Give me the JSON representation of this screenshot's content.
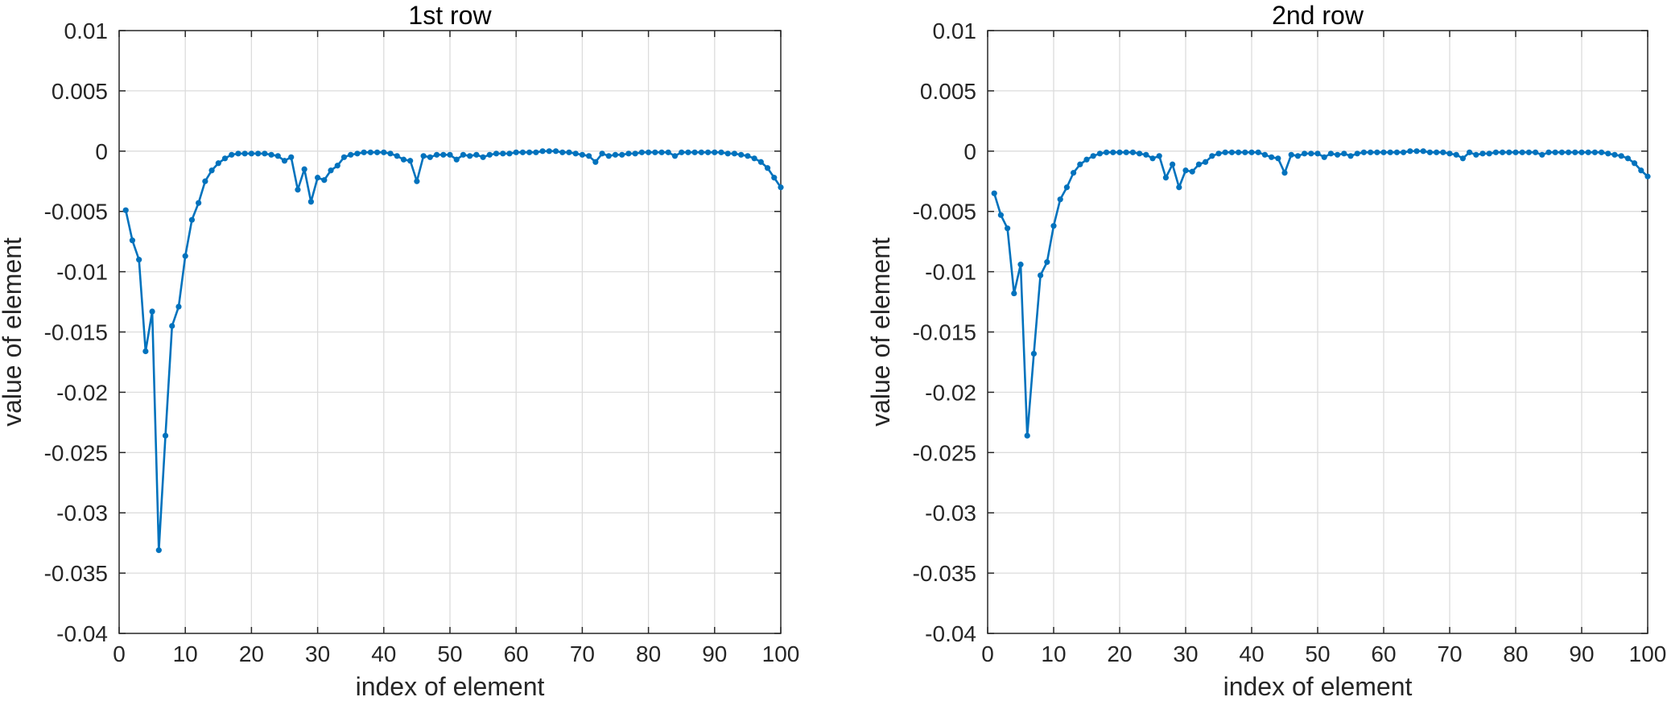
{
  "colors": {
    "line": "#0072BD",
    "grid": "#dcdcdc",
    "axis": "#262626"
  },
  "chart_data": [
    {
      "type": "line",
      "title": "1st row",
      "xlabel": "index of element",
      "ylabel": "value of element",
      "xlim": [
        0,
        100
      ],
      "ylim": [
        -0.04,
        0.01
      ],
      "xticks": [
        0,
        10,
        20,
        30,
        40,
        50,
        60,
        70,
        80,
        90,
        100
      ],
      "yticks": [
        -0.04,
        -0.035,
        -0.03,
        -0.025,
        -0.02,
        -0.015,
        -0.01,
        -0.005,
        0,
        0.005,
        0.01
      ],
      "xtick_labels": [
        "0",
        "10",
        "20",
        "30",
        "40",
        "50",
        "60",
        "70",
        "80",
        "90",
        "100"
      ],
      "ytick_labels": [
        "-0.04",
        "-0.035",
        "-0.03",
        "-0.025",
        "-0.02",
        "-0.015",
        "-0.01",
        "-0.005",
        "0",
        "0.005",
        "0.01"
      ],
      "grid": true,
      "marker": "dot",
      "series": [
        {
          "x": [
            1,
            2,
            3,
            4,
            5,
            6,
            7,
            8,
            9,
            10,
            11,
            12,
            13,
            14,
            15,
            16,
            17,
            18,
            19,
            20,
            21,
            22,
            23,
            24,
            25,
            26,
            27,
            28,
            29,
            30,
            31,
            32,
            33,
            34,
            35,
            36,
            37,
            38,
            39,
            40,
            41,
            42,
            43,
            44,
            45,
            46,
            47,
            48,
            49,
            50,
            51,
            52,
            53,
            54,
            55,
            56,
            57,
            58,
            59,
            60,
            61,
            62,
            63,
            64,
            65,
            66,
            67,
            68,
            69,
            70,
            71,
            72,
            73,
            74,
            75,
            76,
            77,
            78,
            79,
            80,
            81,
            82,
            83,
            84,
            85,
            86,
            87,
            88,
            89,
            90,
            91,
            92,
            93,
            94,
            95,
            96,
            97,
            98,
            99,
            100
          ],
          "values": [
            -0.0049,
            -0.0074,
            -0.009,
            -0.0166,
            -0.0133,
            -0.0331,
            -0.0236,
            -0.0145,
            -0.0129,
            -0.0087,
            -0.0057,
            -0.0043,
            -0.0025,
            -0.0016,
            -0.001,
            -0.0006,
            -0.0003,
            -0.0002,
            -0.0002,
            -0.0002,
            -0.0002,
            -0.0002,
            -0.0003,
            -0.0004,
            -0.0008,
            -0.0005,
            -0.0032,
            -0.0015,
            -0.0042,
            -0.0022,
            -0.0024,
            -0.0016,
            -0.0012,
            -0.0005,
            -0.0003,
            -0.0002,
            -0.0001,
            -0.0001,
            -0.0001,
            -0.0001,
            -0.0002,
            -0.0004,
            -0.0007,
            -0.0008,
            -0.0025,
            -0.0004,
            -0.0005,
            -0.0003,
            -0.0003,
            -0.0003,
            -0.0007,
            -0.0003,
            -0.0004,
            -0.0003,
            -0.0005,
            -0.0003,
            -0.0002,
            -0.0002,
            -0.0002,
            -0.0001,
            -0.0001,
            -0.0001,
            -0.0001,
            0.0,
            0.0,
            0.0,
            -0.0001,
            -0.0001,
            -0.0002,
            -0.0003,
            -0.0004,
            -0.0009,
            -0.0002,
            -0.0004,
            -0.0003,
            -0.0003,
            -0.0002,
            -0.0002,
            -0.0001,
            -0.0001,
            -0.0001,
            -0.0001,
            -0.0001,
            -0.0004,
            -0.0001,
            -0.0001,
            -0.0001,
            -0.0001,
            -0.0001,
            -0.0001,
            -0.0001,
            -0.0002,
            -0.0002,
            -0.0003,
            -0.0004,
            -0.0006,
            -0.0009,
            -0.0014,
            -0.0022,
            -0.003
          ]
        }
      ]
    },
    {
      "type": "line",
      "title": "2nd row",
      "xlabel": "index of element",
      "ylabel": "value of element",
      "xlim": [
        0,
        100
      ],
      "ylim": [
        -0.04,
        0.01
      ],
      "xticks": [
        0,
        10,
        20,
        30,
        40,
        50,
        60,
        70,
        80,
        90,
        100
      ],
      "yticks": [
        -0.04,
        -0.035,
        -0.03,
        -0.025,
        -0.02,
        -0.015,
        -0.01,
        -0.005,
        0,
        0.005,
        0.01
      ],
      "xtick_labels": [
        "0",
        "10",
        "20",
        "30",
        "40",
        "50",
        "60",
        "70",
        "80",
        "90",
        "100"
      ],
      "ytick_labels": [
        "-0.04",
        "-0.035",
        "-0.03",
        "-0.025",
        "-0.02",
        "-0.015",
        "-0.01",
        "-0.005",
        "0",
        "0.005",
        "0.01"
      ],
      "grid": true,
      "marker": "dot",
      "series": [
        {
          "x": [
            1,
            2,
            3,
            4,
            5,
            6,
            7,
            8,
            9,
            10,
            11,
            12,
            13,
            14,
            15,
            16,
            17,
            18,
            19,
            20,
            21,
            22,
            23,
            24,
            25,
            26,
            27,
            28,
            29,
            30,
            31,
            32,
            33,
            34,
            35,
            36,
            37,
            38,
            39,
            40,
            41,
            42,
            43,
            44,
            45,
            46,
            47,
            48,
            49,
            50,
            51,
            52,
            53,
            54,
            55,
            56,
            57,
            58,
            59,
            60,
            61,
            62,
            63,
            64,
            65,
            66,
            67,
            68,
            69,
            70,
            71,
            72,
            73,
            74,
            75,
            76,
            77,
            78,
            79,
            80,
            81,
            82,
            83,
            84,
            85,
            86,
            87,
            88,
            89,
            90,
            91,
            92,
            93,
            94,
            95,
            96,
            97,
            98,
            99,
            100
          ],
          "values": [
            -0.0035,
            -0.0053,
            -0.0064,
            -0.0118,
            -0.0094,
            -0.0236,
            -0.0168,
            -0.0103,
            -0.0092,
            -0.0062,
            -0.004,
            -0.003,
            -0.0018,
            -0.0011,
            -0.0007,
            -0.0004,
            -0.0002,
            -0.0001,
            -0.0001,
            -0.0001,
            -0.0001,
            -0.0001,
            -0.0002,
            -0.0003,
            -0.0006,
            -0.0004,
            -0.0022,
            -0.0011,
            -0.003,
            -0.0016,
            -0.0017,
            -0.0011,
            -0.0009,
            -0.0004,
            -0.0002,
            -0.0001,
            -0.0001,
            -0.0001,
            -0.0001,
            -0.0001,
            -0.0001,
            -0.0003,
            -0.0005,
            -0.0006,
            -0.0018,
            -0.0003,
            -0.0004,
            -0.0002,
            -0.0002,
            -0.0002,
            -0.0005,
            -0.0002,
            -0.0003,
            -0.0002,
            -0.0004,
            -0.0002,
            -0.0001,
            -0.0001,
            -0.0001,
            -0.0001,
            -0.0001,
            -0.0001,
            -0.0001,
            0.0,
            0.0,
            0.0,
            -0.0001,
            -0.0001,
            -0.0001,
            -0.0002,
            -0.0003,
            -0.0006,
            -0.0001,
            -0.0003,
            -0.0002,
            -0.0002,
            -0.0001,
            -0.0001,
            -0.0001,
            -0.0001,
            -0.0001,
            -0.0001,
            -0.0001,
            -0.0003,
            -0.0001,
            -0.0001,
            -0.0001,
            -0.0001,
            -0.0001,
            -0.0001,
            -0.0001,
            -0.0001,
            -0.0001,
            -0.0002,
            -0.0003,
            -0.0004,
            -0.0006,
            -0.001,
            -0.0016,
            -0.0021
          ]
        }
      ]
    }
  ]
}
